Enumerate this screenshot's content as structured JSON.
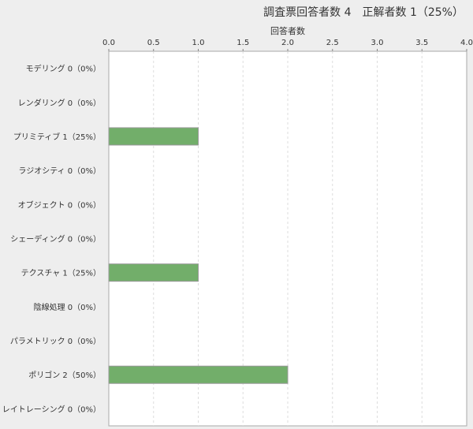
{
  "chart_data": {
    "type": "bar",
    "orientation": "horizontal",
    "title": "調査票回答者数 4　正解者数 1（25%）",
    "xlabel": "回答者数",
    "ylabel": "",
    "xlim": [
      0,
      4.0
    ],
    "x_ticks": [
      "0.0",
      "0.5",
      "1.0",
      "1.5",
      "2.0",
      "2.5",
      "3.0",
      "3.5",
      "4.0"
    ],
    "x_axis_position": "top",
    "grid": "vertical dashed",
    "categories": [
      "モデリング 0（0%）",
      "レンダリング 0（0%）",
      "プリミティブ 1（25%）",
      "ラジオシティ 0（0%）",
      "オブジェクト 0（0%）",
      "シェーディング 0（0%）",
      "テクスチャ 1（25%）",
      "陰線処理 0（0%）",
      "パラメトリック 0（0%）",
      "ポリゴン 2（50%）",
      "レイトレーシング 0（0%）"
    ],
    "values": [
      0,
      0,
      1,
      0,
      0,
      0,
      1,
      0,
      0,
      2,
      0
    ],
    "bar_color": "#72ae6a"
  }
}
